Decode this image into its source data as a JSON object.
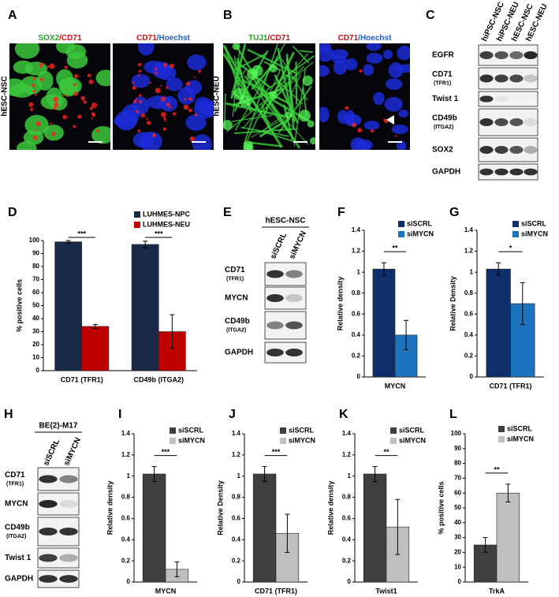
{
  "panel_labels": [
    "A",
    "B",
    "C",
    "D",
    "E",
    "F",
    "G",
    "H",
    "I",
    "J",
    "K",
    "L"
  ],
  "panel_a": {
    "row_label": "hESC-NSC",
    "images": [
      [
        "SOX2",
        "/CD71"
      ],
      [
        "CD71",
        "/Hoechst"
      ]
    ]
  },
  "panel_b": {
    "row_label": "hESC-NEU",
    "images": [
      [
        "TUJ1",
        "/CD71"
      ],
      [
        "CD71",
        "/Hoechst"
      ]
    ]
  },
  "panel_c": {
    "lanes": [
      "hiPSC-NSC",
      "hiPSC-NEU",
      "hESC-NSC",
      "hESC-NEU"
    ],
    "rows": [
      [
        "EGFR"
      ],
      [
        "CD71",
        "(TFR1)"
      ],
      [
        "Twist 1"
      ],
      [
        "CD49b",
        "(ITGA2)"
      ],
      [
        "SOX2"
      ],
      [
        "GAPDH"
      ]
    ]
  },
  "panel_e": {
    "header": "hESC-NSC",
    "lanes": [
      "siSCRL",
      "siMYCN"
    ],
    "rows": [
      [
        "CD71",
        "(TFR1)"
      ],
      [
        "MYCN"
      ],
      [
        "CD49b",
        "(ITGA2)"
      ],
      [
        "GAPDH"
      ]
    ]
  },
  "panel_h": {
    "header": "BE(2)-M17",
    "lanes": [
      "siSCRL",
      "siMYCN"
    ],
    "rows": [
      [
        "CD71",
        "(TFR1)"
      ],
      [
        "MYCN"
      ],
      [
        "CD49b",
        "(ITGA2)"
      ],
      [
        "Twist 1"
      ],
      [
        "GAPDH"
      ]
    ]
  },
  "chart_data": [
    {
      "type": "bar",
      "ylabel": "% positive cells",
      "categories": [
        "CD71 (TFR1)",
        "CD49b (ITGA2)"
      ],
      "series": [
        {
          "name": "LUHMES-NPC",
          "color": "#1b2a49",
          "values": [
            99,
            97
          ],
          "errors": [
            1,
            2.5
          ]
        },
        {
          "name": "LUHMES-NEU",
          "color": "#c00000",
          "values": [
            34,
            30
          ],
          "errors": [
            1.5,
            13
          ]
        }
      ],
      "ylim": [
        0,
        100
      ],
      "yticks": [
        0,
        10,
        20,
        30,
        40,
        50,
        60,
        70,
        80,
        90,
        100
      ],
      "legend": "upper right",
      "significance": [
        "***",
        "***"
      ]
    },
    {
      "type": "bar",
      "ylabel": "Relative density",
      "categories": [
        "MYCN"
      ],
      "series": [
        {
          "name": "siSCRL",
          "color": "#0f2f6b",
          "values": [
            1.03
          ],
          "errors": [
            0.06
          ]
        },
        {
          "name": "siMYCN",
          "color": "#1e73be",
          "values": [
            0.4
          ],
          "errors": [
            0.14
          ]
        }
      ],
      "ylim": [
        0,
        1.4
      ],
      "yticks": [
        0,
        0.2,
        0.4,
        0.6,
        0.8,
        1,
        1.2,
        1.4
      ],
      "legend": "upper right",
      "significance": [
        "**"
      ]
    },
    {
      "type": "bar",
      "ylabel": "Relative Density",
      "categories": [
        "CD71 (TFR1)"
      ],
      "series": [
        {
          "name": "siSCRL",
          "color": "#0f2f6b",
          "values": [
            1.03
          ],
          "errors": [
            0.06
          ]
        },
        {
          "name": "siMYCN",
          "color": "#1e73be",
          "values": [
            0.7
          ],
          "errors": [
            0.2
          ]
        }
      ],
      "ylim": [
        0,
        1.4
      ],
      "yticks": [
        0,
        0.2,
        0.4,
        0.6,
        0.8,
        1,
        1.2,
        1.4
      ],
      "legend": "upper right",
      "significance": [
        "*"
      ]
    },
    {
      "type": "bar",
      "ylabel": "Relative density",
      "categories": [
        "MYCN"
      ],
      "series": [
        {
          "name": "siSCRL",
          "color": "#3f3f3f",
          "values": [
            1.02
          ],
          "errors": [
            0.07
          ]
        },
        {
          "name": "siMYCN",
          "color": "#bfbfbf",
          "values": [
            0.12
          ],
          "errors": [
            0.07
          ]
        }
      ],
      "ylim": [
        0,
        1.4
      ],
      "yticks": [
        0,
        0.2,
        0.4,
        0.6,
        0.8,
        1,
        1.2,
        1.4
      ],
      "legend": "upper right",
      "significance": [
        "***"
      ]
    },
    {
      "type": "bar",
      "ylabel": "Relative Density",
      "categories": [
        "CD71 (TFR1)"
      ],
      "series": [
        {
          "name": "siSCRL",
          "color": "#3f3f3f",
          "values": [
            1.02
          ],
          "errors": [
            0.07
          ]
        },
        {
          "name": "siMYCN",
          "color": "#bfbfbf",
          "values": [
            0.46
          ],
          "errors": [
            0.18
          ]
        }
      ],
      "ylim": [
        0,
        1.4
      ],
      "yticks": [
        0,
        0.2,
        0.4,
        0.6,
        0.8,
        1,
        1.2,
        1.4
      ],
      "legend": "upper right",
      "significance": [
        "***"
      ]
    },
    {
      "type": "bar",
      "ylabel": "Relative density",
      "categories": [
        "Twist1"
      ],
      "series": [
        {
          "name": "siSCRL",
          "color": "#3f3f3f",
          "values": [
            1.02
          ],
          "errors": [
            0.07
          ]
        },
        {
          "name": "siMYCN",
          "color": "#bfbfbf",
          "values": [
            0.52
          ],
          "errors": [
            0.26
          ]
        }
      ],
      "ylim": [
        0,
        1.4
      ],
      "yticks": [
        0,
        0.2,
        0.4,
        0.6,
        0.8,
        1,
        1.2,
        1.4
      ],
      "legend": "upper right",
      "significance": [
        "**"
      ]
    },
    {
      "type": "bar",
      "ylabel": "% positive cells",
      "categories": [
        "TrkA"
      ],
      "series": [
        {
          "name": "siSCRL",
          "color": "#3f3f3f",
          "values": [
            25
          ],
          "errors": [
            5
          ]
        },
        {
          "name": "siMYCN",
          "color": "#bfbfbf",
          "values": [
            60
          ],
          "errors": [
            6
          ]
        }
      ],
      "ylim": [
        0,
        100
      ],
      "yticks": [
        0,
        10,
        20,
        30,
        40,
        50,
        60,
        70,
        80,
        90,
        100
      ],
      "legend": "upper right",
      "significance": [
        "**"
      ]
    }
  ]
}
